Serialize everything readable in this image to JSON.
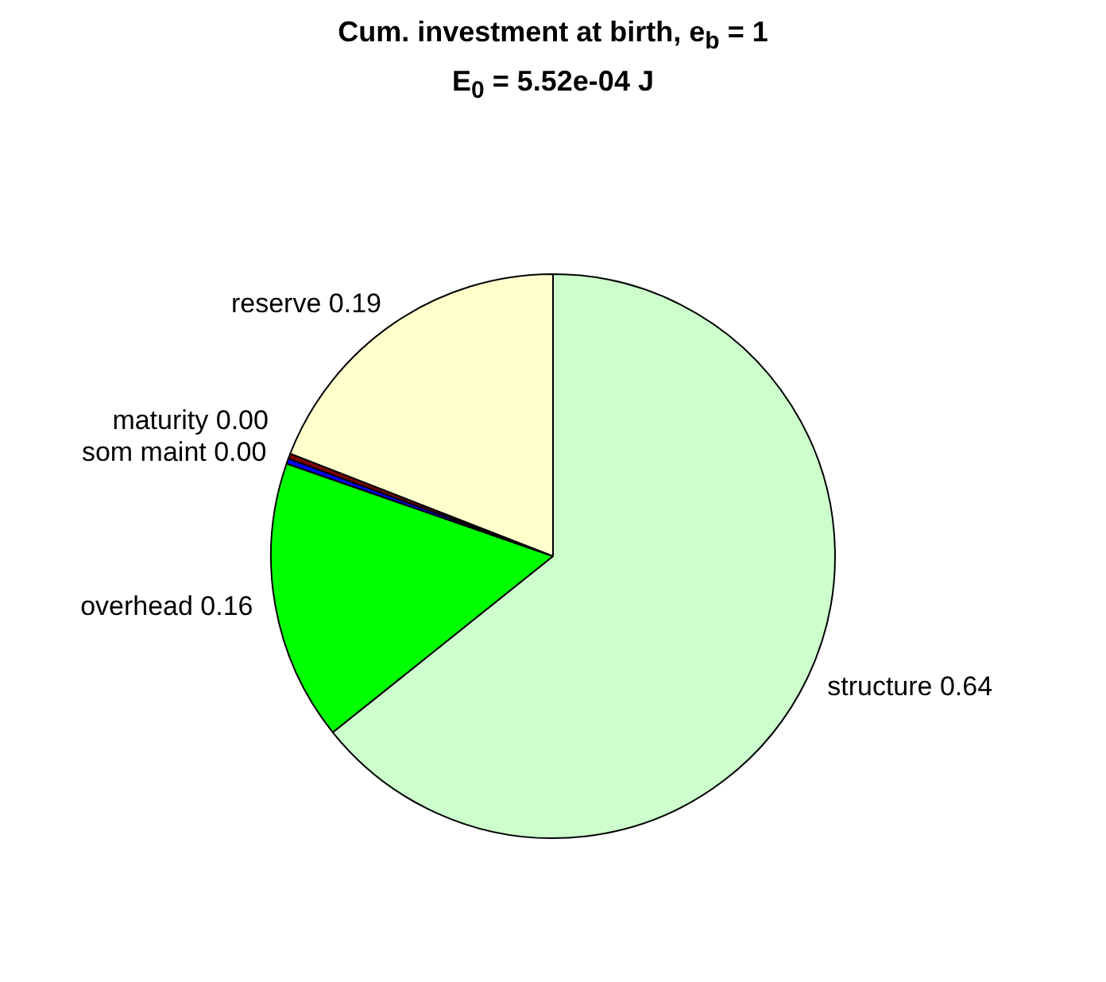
{
  "chart_data": {
    "type": "pie",
    "title": "Cum. investment at birth, e$_{b}$ = 1",
    "subtitle": "E$_{0}$ = 5.52e-04 J",
    "categories": [
      "structure",
      "overhead",
      "som maint",
      "maturity",
      "reserve"
    ],
    "values": [
      0.64,
      0.16,
      0.003,
      0.003,
      0.19
    ],
    "value_labels": [
      "0.64",
      "0.16",
      "0.00",
      "0.00",
      "0.19"
    ],
    "colors": [
      "#ccffcc",
      "#00ff00",
      "#0000ff",
      "#800000",
      "#ffffcc"
    ],
    "legend": false
  }
}
